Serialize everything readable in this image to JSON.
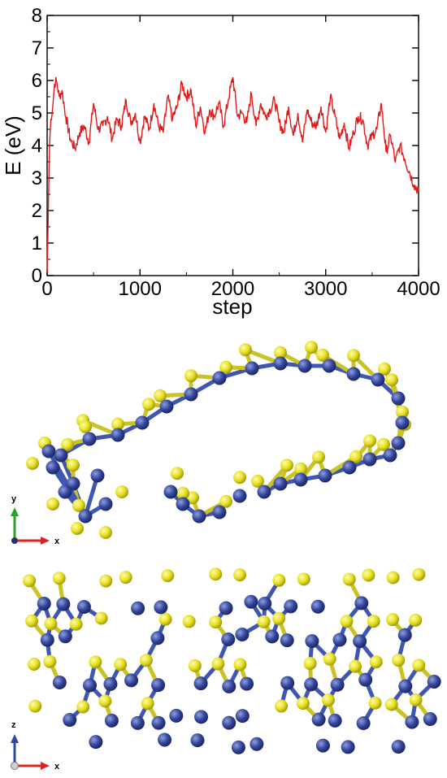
{
  "figure": {
    "atom_colors": {
      "blue": "#34469c",
      "yellow": "#e6e01c",
      "bond": "#4a5fb0"
    },
    "line_color": "#e01a1a",
    "top_view_axes": {
      "horizontal": "x",
      "vertical": "y"
    },
    "side_view_axes": {
      "horizontal": "x",
      "vertical": "z"
    }
  },
  "chart_data": {
    "type": "line",
    "title": "",
    "xlabel": "step",
    "ylabel": "E (eV)",
    "xlim": [
      0,
      4000
    ],
    "ylim": [
      0,
      8
    ],
    "xticks": [
      "0",
      "1000",
      "2000",
      "3000",
      "4000"
    ],
    "yticks": [
      "0",
      "1",
      "2",
      "3",
      "4",
      "5",
      "6",
      "7",
      "8"
    ],
    "grid": false,
    "series": [
      {
        "color": "#e01a1a",
        "x": [
          0,
          10,
          25,
          40,
          60,
          80,
          100,
          130,
          160,
          200,
          250,
          300,
          350,
          400,
          450,
          500,
          550,
          600,
          650,
          700,
          750,
          800,
          850,
          900,
          950,
          1000,
          1050,
          1100,
          1150,
          1200,
          1250,
          1300,
          1350,
          1400,
          1450,
          1500,
          1550,
          1600,
          1650,
          1700,
          1750,
          1800,
          1850,
          1900,
          1950,
          2000,
          2050,
          2100,
          2150,
          2200,
          2250,
          2300,
          2350,
          2400,
          2450,
          2500,
          2550,
          2600,
          2650,
          2700,
          2750,
          2800,
          2850,
          2900,
          2950,
          3000,
          3050,
          3100,
          3150,
          3200,
          3250,
          3300,
          3350,
          3400,
          3450,
          3500,
          3550,
          3600,
          3650,
          3700,
          3750,
          3800,
          3850,
          3900,
          3950,
          4000
        ],
        "y": [
          0.1,
          1.5,
          4.0,
          4.8,
          5.2,
          5.9,
          6.0,
          5.5,
          5.7,
          4.9,
          4.2,
          3.9,
          4.4,
          4.6,
          4.1,
          5.3,
          4.5,
          4.6,
          4.9,
          4.2,
          4.8,
          4.6,
          5.4,
          4.7,
          5.0,
          4.1,
          4.9,
          4.5,
          5.3,
          4.6,
          4.4,
          5.5,
          4.8,
          5.2,
          5.9,
          5.5,
          5.7,
          4.6,
          5.2,
          4.4,
          5.1,
          4.9,
          5.3,
          4.6,
          5.4,
          6.1,
          4.9,
          5.0,
          4.7,
          5.6,
          4.6,
          5.3,
          4.9,
          5.1,
          5.4,
          4.7,
          4.4,
          5.2,
          4.3,
          5.0,
          4.1,
          5.1,
          4.7,
          4.6,
          5.2,
          4.4,
          5.5,
          4.9,
          4.2,
          4.7,
          3.9,
          4.4,
          4.9,
          4.8,
          4.0,
          4.3,
          4.5,
          5.3,
          3.8,
          4.3,
          3.5,
          4.0,
          3.6,
          3.2,
          2.8,
          2.6
        ]
      }
    ]
  }
}
